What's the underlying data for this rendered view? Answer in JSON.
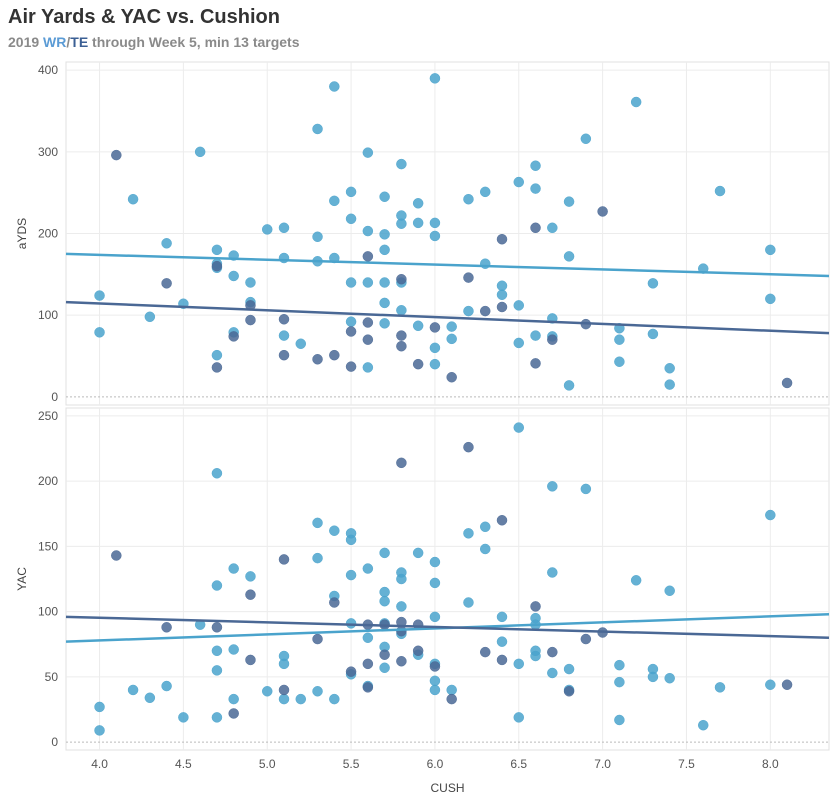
{
  "header": {
    "title": "Air Yards & YAC vs. Cushion",
    "subtitle_prefix": "2019 ",
    "subtitle_wr": "WR",
    "subtitle_sep": "/",
    "subtitle_te": "TE",
    "subtitle_suffix": " through Week 5, min 13 targets"
  },
  "colors": {
    "WR": "#4aa3cc",
    "TE": "#4a6895"
  },
  "chart_data": [
    {
      "type": "scatter",
      "panel": "top",
      "ylabel": "aYDS",
      "xlabel": "",
      "xlim": [
        3.8,
        8.35
      ],
      "ylim": [
        -10,
        410
      ],
      "yticks": [
        0,
        100,
        200,
        300,
        400
      ],
      "grid": true,
      "series": [
        {
          "name": "WR",
          "points": [
            [
              4.0,
              124
            ],
            [
              4.0,
              79
            ],
            [
              4.2,
              242
            ],
            [
              4.3,
              98
            ],
            [
              4.4,
              188
            ],
            [
              4.5,
              114
            ],
            [
              4.6,
              300
            ],
            [
              4.7,
              180
            ],
            [
              4.7,
              163
            ],
            [
              4.7,
              158
            ],
            [
              4.7,
              51
            ],
            [
              4.8,
              173
            ],
            [
              4.8,
              148
            ],
            [
              4.8,
              79
            ],
            [
              4.9,
              140
            ],
            [
              4.9,
              116
            ],
            [
              5.0,
              205
            ],
            [
              5.1,
              207
            ],
            [
              5.1,
              170
            ],
            [
              5.1,
              75
            ],
            [
              5.2,
              65
            ],
            [
              5.3,
              328
            ],
            [
              5.3,
              196
            ],
            [
              5.3,
              166
            ],
            [
              5.4,
              380
            ],
            [
              5.4,
              240
            ],
            [
              5.4,
              170
            ],
            [
              5.5,
              251
            ],
            [
              5.5,
              218
            ],
            [
              5.5,
              140
            ],
            [
              5.5,
              92
            ],
            [
              5.6,
              299
            ],
            [
              5.6,
              203
            ],
            [
              5.6,
              140
            ],
            [
              5.6,
              36
            ],
            [
              5.7,
              245
            ],
            [
              5.7,
              199
            ],
            [
              5.7,
              180
            ],
            [
              5.7,
              140
            ],
            [
              5.7,
              115
            ],
            [
              5.7,
              90
            ],
            [
              5.8,
              285
            ],
            [
              5.8,
              222
            ],
            [
              5.8,
              212
            ],
            [
              5.8,
              140
            ],
            [
              5.8,
              106
            ],
            [
              5.9,
              237
            ],
            [
              5.9,
              213
            ],
            [
              5.9,
              87
            ],
            [
              6.0,
              390
            ],
            [
              6.0,
              213
            ],
            [
              6.0,
              197
            ],
            [
              6.0,
              60
            ],
            [
              6.0,
              40
            ],
            [
              6.1,
              86
            ],
            [
              6.1,
              71
            ],
            [
              6.2,
              242
            ],
            [
              6.2,
              105
            ],
            [
              6.3,
              251
            ],
            [
              6.3,
              163
            ],
            [
              6.4,
              136
            ],
            [
              6.4,
              125
            ],
            [
              6.5,
              263
            ],
            [
              6.5,
              112
            ],
            [
              6.5,
              66
            ],
            [
              6.6,
              283
            ],
            [
              6.6,
              255
            ],
            [
              6.6,
              75
            ],
            [
              6.7,
              207
            ],
            [
              6.7,
              96
            ],
            [
              6.7,
              74
            ],
            [
              6.8,
              239
            ],
            [
              6.8,
              172
            ],
            [
              6.8,
              14
            ],
            [
              6.9,
              316
            ],
            [
              7.1,
              84
            ],
            [
              7.1,
              70
            ],
            [
              7.1,
              43
            ],
            [
              7.2,
              361
            ],
            [
              7.3,
              139
            ],
            [
              7.3,
              77
            ],
            [
              7.4,
              35
            ],
            [
              7.4,
              15
            ],
            [
              7.6,
              157
            ],
            [
              7.7,
              252
            ],
            [
              8.0,
              180
            ],
            [
              8.0,
              120
            ]
          ]
        },
        {
          "name": "TE",
          "points": [
            [
              4.1,
              296
            ],
            [
              4.4,
              139
            ],
            [
              4.7,
              160
            ],
            [
              4.7,
              36
            ],
            [
              4.8,
              74
            ],
            [
              4.9,
              112
            ],
            [
              4.9,
              94
            ],
            [
              5.1,
              95
            ],
            [
              5.1,
              51
            ],
            [
              5.3,
              46
            ],
            [
              5.4,
              51
            ],
            [
              5.5,
              80
            ],
            [
              5.5,
              37
            ],
            [
              5.6,
              172
            ],
            [
              5.6,
              91
            ],
            [
              5.6,
              70
            ],
            [
              5.8,
              144
            ],
            [
              5.8,
              62
            ],
            [
              5.8,
              75
            ],
            [
              5.9,
              40
            ],
            [
              6.0,
              85
            ],
            [
              6.1,
              24
            ],
            [
              6.2,
              146
            ],
            [
              6.3,
              105
            ],
            [
              6.4,
              193
            ],
            [
              6.4,
              110
            ],
            [
              6.6,
              207
            ],
            [
              6.6,
              41
            ],
            [
              6.7,
              70
            ],
            [
              6.9,
              89
            ],
            [
              7.0,
              227
            ],
            [
              8.1,
              17
            ]
          ]
        }
      ],
      "trendlines": [
        {
          "name": "WR",
          "x": [
            3.8,
            8.35
          ],
          "y": [
            175,
            148
          ]
        },
        {
          "name": "TE",
          "x": [
            3.8,
            8.35
          ],
          "y": [
            116,
            78
          ]
        }
      ]
    },
    {
      "type": "scatter",
      "panel": "bottom",
      "ylabel": "YAC",
      "xlabel": "CUSH",
      "xlim": [
        3.8,
        8.35
      ],
      "ylim": [
        -6,
        256
      ],
      "yticks": [
        0,
        50,
        100,
        150,
        200,
        250
      ],
      "xticks": [
        4.0,
        4.5,
        5.0,
        5.5,
        6.0,
        6.5,
        7.0,
        7.5,
        8.0
      ],
      "xtick_labels": [
        "4.0",
        "4.5",
        "5.0",
        "5.5",
        "6.0",
        "6.5",
        "7.0",
        "7.5",
        "8.0"
      ],
      "grid": true,
      "series": [
        {
          "name": "WR",
          "points": [
            [
              4.0,
              27
            ],
            [
              4.0,
              9
            ],
            [
              4.2,
              40
            ],
            [
              4.3,
              34
            ],
            [
              4.4,
              43
            ],
            [
              4.5,
              19
            ],
            [
              4.6,
              90
            ],
            [
              4.7,
              206
            ],
            [
              4.7,
              120
            ],
            [
              4.7,
              70
            ],
            [
              4.7,
              55
            ],
            [
              4.7,
              19
            ],
            [
              4.8,
              133
            ],
            [
              4.8,
              71
            ],
            [
              4.8,
              33
            ],
            [
              4.9,
              127
            ],
            [
              5.0,
              39
            ],
            [
              5.1,
              66
            ],
            [
              5.1,
              60
            ],
            [
              5.1,
              33
            ],
            [
              5.2,
              33
            ],
            [
              5.3,
              168
            ],
            [
              5.3,
              141
            ],
            [
              5.3,
              39
            ],
            [
              5.4,
              162
            ],
            [
              5.4,
              112
            ],
            [
              5.4,
              33
            ],
            [
              5.5,
              160
            ],
            [
              5.5,
              155
            ],
            [
              5.5,
              128
            ],
            [
              5.5,
              91
            ],
            [
              5.5,
              52
            ],
            [
              5.6,
              133
            ],
            [
              5.6,
              80
            ],
            [
              5.6,
              43
            ],
            [
              5.7,
              145
            ],
            [
              5.7,
              115
            ],
            [
              5.7,
              108
            ],
            [
              5.7,
              91
            ],
            [
              5.7,
              73
            ],
            [
              5.7,
              57
            ],
            [
              5.8,
              130
            ],
            [
              5.8,
              125
            ],
            [
              5.8,
              104
            ],
            [
              5.8,
              83
            ],
            [
              5.9,
              145
            ],
            [
              5.9,
              67
            ],
            [
              6.0,
              138
            ],
            [
              6.0,
              122
            ],
            [
              6.0,
              96
            ],
            [
              6.0,
              60
            ],
            [
              6.0,
              47
            ],
            [
              6.0,
              40
            ],
            [
              6.1,
              40
            ],
            [
              6.2,
              160
            ],
            [
              6.2,
              107
            ],
            [
              6.3,
              165
            ],
            [
              6.3,
              148
            ],
            [
              6.4,
              96
            ],
            [
              6.4,
              77
            ],
            [
              6.5,
              241
            ],
            [
              6.5,
              60
            ],
            [
              6.5,
              19
            ],
            [
              6.6,
              95
            ],
            [
              6.6,
              90
            ],
            [
              6.6,
              70
            ],
            [
              6.6,
              66
            ],
            [
              6.7,
              196
            ],
            [
              6.7,
              130
            ],
            [
              6.7,
              53
            ],
            [
              6.8,
              56
            ],
            [
              6.8,
              40
            ],
            [
              6.9,
              194
            ],
            [
              7.1,
              59
            ],
            [
              7.1,
              46
            ],
            [
              7.1,
              17
            ],
            [
              7.2,
              124
            ],
            [
              7.3,
              56
            ],
            [
              7.3,
              50
            ],
            [
              7.4,
              116
            ],
            [
              7.4,
              49
            ],
            [
              7.6,
              13
            ],
            [
              7.7,
              42
            ],
            [
              8.0,
              174
            ],
            [
              8.0,
              44
            ]
          ]
        },
        {
          "name": "TE",
          "points": [
            [
              4.1,
              143
            ],
            [
              4.4,
              88
            ],
            [
              4.7,
              88
            ],
            [
              4.8,
              22
            ],
            [
              4.9,
              113
            ],
            [
              4.9,
              63
            ],
            [
              5.1,
              140
            ],
            [
              5.1,
              40
            ],
            [
              5.3,
              79
            ],
            [
              5.4,
              107
            ],
            [
              5.5,
              54
            ],
            [
              5.6,
              90
            ],
            [
              5.6,
              60
            ],
            [
              5.6,
              42
            ],
            [
              5.7,
              90
            ],
            [
              5.7,
              67
            ],
            [
              5.8,
              214
            ],
            [
              5.8,
              92
            ],
            [
              5.8,
              85
            ],
            [
              5.8,
              62
            ],
            [
              5.9,
              70
            ],
            [
              5.9,
              90
            ],
            [
              6.0,
              58
            ],
            [
              6.1,
              33
            ],
            [
              6.2,
              226
            ],
            [
              6.3,
              69
            ],
            [
              6.4,
              170
            ],
            [
              6.4,
              63
            ],
            [
              6.6,
              104
            ],
            [
              6.7,
              69
            ],
            [
              6.8,
              39
            ],
            [
              6.9,
              79
            ],
            [
              7.0,
              84
            ],
            [
              8.1,
              44
            ]
          ]
        }
      ],
      "trendlines": [
        {
          "name": "WR",
          "x": [
            3.8,
            8.35
          ],
          "y": [
            77,
            98
          ]
        },
        {
          "name": "TE",
          "x": [
            3.8,
            8.35
          ],
          "y": [
            96,
            80
          ]
        }
      ]
    }
  ]
}
